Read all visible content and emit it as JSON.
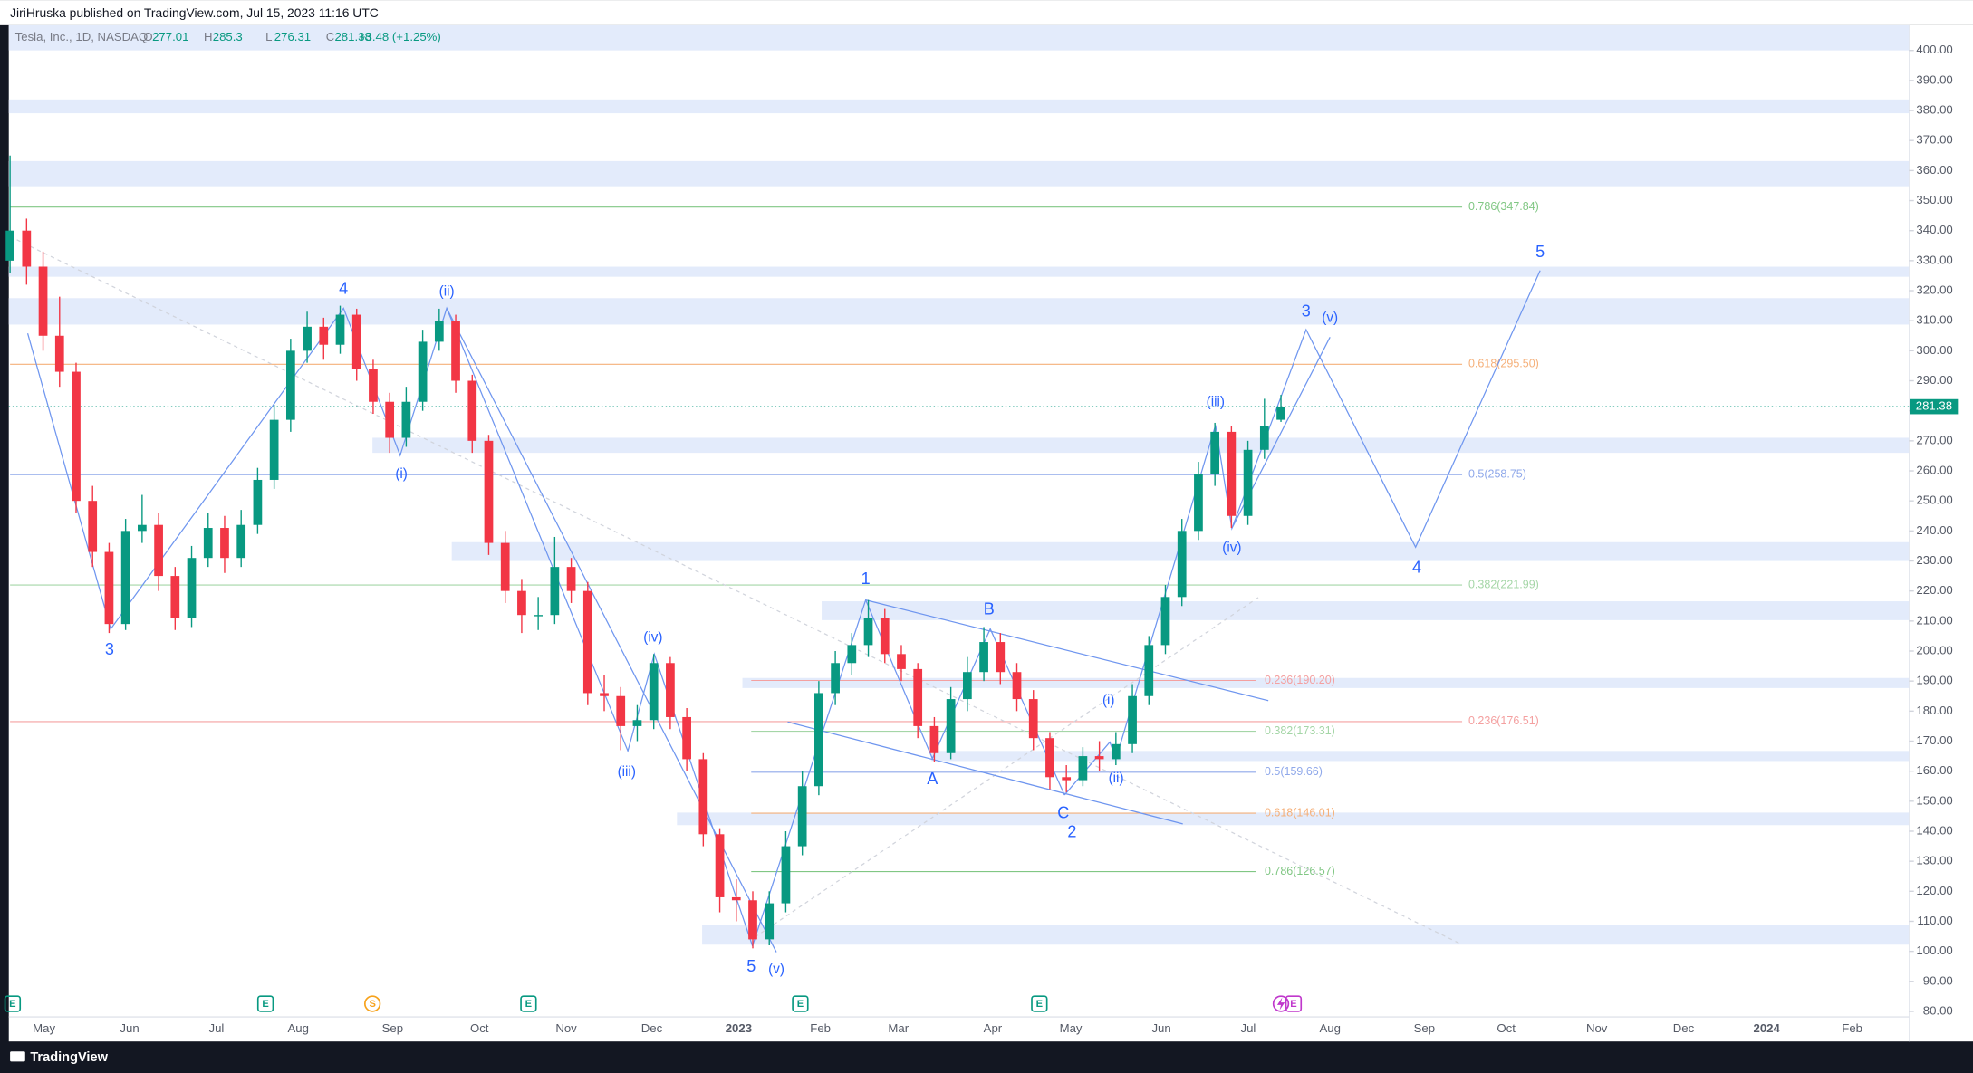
{
  "header": {
    "text": "JiriHruska published on TradingView.com, Jul 15, 2023 11:16 UTC"
  },
  "footer": {
    "brand": "TradingView"
  },
  "chart_data": {
    "type": "candlestick",
    "symbol": "Tesla, Inc., 1D, NASDAQ",
    "legend": {
      "o": "O",
      "h": "H",
      "l": "L",
      "c": "C",
      "change": "+3.48 (+1.25%)"
    },
    "up_color": "#089981",
    "down_color": "#f23645",
    "ylim": [
      70.4,
      408.4
    ],
    "yticks": [
      {
        "value": 80,
        "label": "80.00"
      },
      {
        "value": 90,
        "label": "90.00"
      },
      {
        "value": 100,
        "label": "100.00"
      },
      {
        "value": 110,
        "label": "110.00"
      },
      {
        "value": 120,
        "label": "120.00"
      },
      {
        "value": 130,
        "label": "130.00"
      },
      {
        "value": 140,
        "label": "140.00"
      },
      {
        "value": 150,
        "label": "150.00"
      },
      {
        "value": 160,
        "label": "160.00"
      },
      {
        "value": 170,
        "label": "170.00"
      },
      {
        "value": 180,
        "label": "180.00"
      },
      {
        "value": 190,
        "label": "190.00"
      },
      {
        "value": 200,
        "label": "200.00"
      },
      {
        "value": 210,
        "label": "210.00"
      },
      {
        "value": 220,
        "label": "220.00"
      },
      {
        "value": 230,
        "label": "230.00"
      },
      {
        "value": 240,
        "label": "240.00"
      },
      {
        "value": 250,
        "label": "250.00"
      },
      {
        "value": 260,
        "label": "260.00"
      },
      {
        "value": 270,
        "label": "270.00"
      },
      {
        "value": 280,
        "label": "280.00"
      },
      {
        "value": 290,
        "label": "290.00"
      },
      {
        "value": 300,
        "label": "300.00"
      },
      {
        "value": 310,
        "label": "310.00"
      },
      {
        "value": 320,
        "label": "320.00"
      },
      {
        "value": 330,
        "label": "330.00"
      },
      {
        "value": 340,
        "label": "340.00"
      },
      {
        "value": 350,
        "label": "350.00"
      },
      {
        "value": 360,
        "label": "360.00"
      },
      {
        "value": 370,
        "label": "370.00"
      },
      {
        "value": 380,
        "label": "380.00"
      },
      {
        "value": 390,
        "label": "390.00"
      },
      {
        "value": 400,
        "label": "400.00"
      }
    ],
    "x_labels": [
      "May",
      "Jun",
      "Jul",
      "Aug",
      "Sep",
      "Oct",
      "Nov",
      "Dec",
      "2023",
      "Feb",
      "Mar",
      "Apr",
      "May",
      "Jun",
      "Jul",
      "Aug",
      "Sep",
      "Oct",
      "Nov",
      "Dec",
      "2024",
      "Feb"
    ],
    "candles": [
      [
        330,
        365,
        326,
        340
      ],
      [
        340,
        344,
        322,
        328
      ],
      [
        328,
        333,
        300,
        305
      ],
      [
        305,
        318,
        288,
        293
      ],
      [
        293,
        296,
        246,
        250
      ],
      [
        250,
        255,
        228,
        233
      ],
      [
        233,
        236,
        206,
        209
      ],
      [
        209,
        244,
        207,
        240
      ],
      [
        240,
        252,
        236,
        242
      ],
      [
        242,
        246,
        220,
        225
      ],
      [
        225,
        228,
        207,
        211
      ],
      [
        211,
        235,
        208,
        231
      ],
      [
        231,
        246,
        228,
        241
      ],
      [
        241,
        245,
        226,
        231
      ],
      [
        231,
        247,
        228,
        242
      ],
      [
        242,
        261,
        239,
        257
      ],
      [
        257,
        282,
        254,
        277
      ],
      [
        277,
        304,
        273,
        300
      ],
      [
        300,
        313,
        296,
        308
      ],
      [
        308,
        311,
        297,
        302
      ],
      [
        302,
        315,
        299,
        312
      ],
      [
        312,
        314,
        290,
        294
      ],
      [
        294,
        297,
        279,
        283
      ],
      [
        283,
        286,
        266,
        271
      ],
      [
        271,
        288,
        268,
        283
      ],
      [
        283,
        307,
        280,
        303
      ],
      [
        303,
        314,
        300,
        310
      ],
      [
        310,
        312,
        286,
        290
      ],
      [
        290,
        292,
        266,
        270
      ],
      [
        270,
        272,
        232,
        236
      ],
      [
        236,
        240,
        216,
        220
      ],
      [
        220,
        224,
        206,
        212
      ],
      [
        212,
        218,
        207,
        212
      ],
      [
        212,
        238,
        209,
        228
      ],
      [
        228,
        231,
        216,
        220
      ],
      [
        220,
        223,
        182,
        186
      ],
      [
        186,
        192,
        180,
        185
      ],
      [
        185,
        188,
        167,
        175
      ],
      [
        175,
        182,
        170,
        177
      ],
      [
        177,
        199,
        174,
        196
      ],
      [
        196,
        198,
        174,
        178
      ],
      [
        178,
        181,
        160,
        164
      ],
      [
        164,
        166,
        135,
        139
      ],
      [
        139,
        141,
        113,
        118
      ],
      [
        118,
        124,
        110,
        117
      ],
      [
        117,
        120,
        101,
        104
      ],
      [
        104,
        120,
        102,
        116
      ],
      [
        116,
        140,
        113,
        135
      ],
      [
        135,
        160,
        132,
        155
      ],
      [
        155,
        190,
        152,
        186
      ],
      [
        186,
        200,
        182,
        196
      ],
      [
        196,
        206,
        192,
        202
      ],
      [
        202,
        217,
        198,
        211
      ],
      [
        211,
        214,
        196,
        199
      ],
      [
        199,
        202,
        190,
        194
      ],
      [
        194,
        196,
        171,
        175
      ],
      [
        175,
        178,
        163,
        166
      ],
      [
        166,
        188,
        164,
        184
      ],
      [
        184,
        198,
        180,
        193
      ],
      [
        193,
        208,
        190,
        203
      ],
      [
        203,
        206,
        189,
        193
      ],
      [
        193,
        196,
        180,
        184
      ],
      [
        184,
        187,
        167,
        171
      ],
      [
        171,
        173,
        154,
        158
      ],
      [
        158,
        162,
        153,
        157
      ],
      [
        157,
        168,
        155,
        165
      ],
      [
        165,
        170,
        160,
        164
      ],
      [
        164,
        173,
        162,
        169
      ],
      [
        169,
        189,
        166,
        185
      ],
      [
        185,
        205,
        182,
        202
      ],
      [
        202,
        222,
        199,
        218
      ],
      [
        218,
        244,
        215,
        240
      ],
      [
        240,
        263,
        237,
        259
      ],
      [
        259,
        276,
        255,
        273
      ],
      [
        273,
        275,
        241,
        245
      ],
      [
        245,
        270,
        242,
        267
      ],
      [
        267,
        284,
        264,
        275
      ],
      [
        277.01,
        285.3,
        276.31,
        281.38
      ]
    ],
    "fib_upper": [
      {
        "value": 347.84,
        "label": "0.786(347.84)",
        "color": "#81c784"
      },
      {
        "value": 295.5,
        "label": "0.618(295.50)",
        "color": "#f5b07a"
      },
      {
        "value": 258.75,
        "label": "0.5(258.75)",
        "color": "#8fa8ea"
      },
      {
        "value": 221.99,
        "label": "0.382(221.99)",
        "color": "#a5d6a7"
      },
      {
        "value": 176.51,
        "label": "0.236(176.51)",
        "color": "#f4a0a0"
      }
    ],
    "fib_lower": [
      {
        "value": 190.2,
        "label": "0.236(190.20)",
        "color": "#f4a0a0"
      },
      {
        "value": 173.31,
        "label": "0.382(173.31)",
        "color": "#a5d6a7"
      },
      {
        "value": 159.66,
        "label": "0.5(159.66)",
        "color": "#8fa8ea"
      },
      {
        "value": 146.01,
        "label": "0.618(146.01)",
        "color": "#f5b07a"
      },
      {
        "value": 126.57,
        "label": "0.786(126.57)",
        "color": "#81c784"
      }
    ],
    "wave_labels": [
      "3",
      "4",
      "(ii)",
      "(i)",
      "(iii)",
      "(iv)",
      "5",
      "(v)",
      "1",
      "A",
      "B",
      "C",
      "2",
      "(i)",
      "(ii)",
      "(iii)",
      "(iv)",
      "3",
      "(v)",
      "5",
      "4"
    ],
    "events": [
      "E",
      "E",
      "S",
      "E",
      "E",
      "E",
      "E"
    ]
  }
}
